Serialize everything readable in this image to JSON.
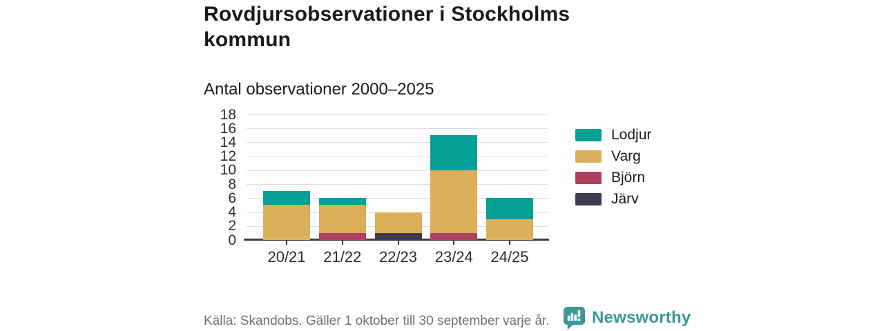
{
  "title": "Rovdjursobservationer i Stockholms kommun",
  "footer": {
    "source": "Källa: Skandobs. Gäller 1 oktober till 30 september varje år."
  },
  "brand": {
    "name": "Newsworthy",
    "color": "#3a9a94"
  },
  "chart_data": {
    "type": "bar",
    "stacked": true,
    "title": "Antal observationer 2000–2025",
    "xlabel": "",
    "ylabel": "",
    "categories": [
      "20/21",
      "21/22",
      "22/23",
      "23/24",
      "24/25"
    ],
    "series": [
      {
        "name": "Lodjur",
        "color": "#04a096",
        "values": [
          2,
          1,
          0,
          5,
          3
        ]
      },
      {
        "name": "Varg",
        "color": "#dcaf5b",
        "values": [
          5,
          4,
          3,
          9,
          3
        ]
      },
      {
        "name": "Björn",
        "color": "#ad4061",
        "values": [
          0,
          1,
          0,
          1,
          0
        ]
      },
      {
        "name": "Järv",
        "color": "#3d3d4d",
        "values": [
          0,
          0,
          1,
          0,
          0
        ]
      }
    ],
    "totals": [
      7,
      6,
      4,
      15,
      6
    ],
    "ylim": [
      0,
      18
    ],
    "ytick_step": 2,
    "grid": true,
    "legend_position": "right",
    "axis_color": "#3b3b3b",
    "gridline_color": "#dddddd"
  }
}
